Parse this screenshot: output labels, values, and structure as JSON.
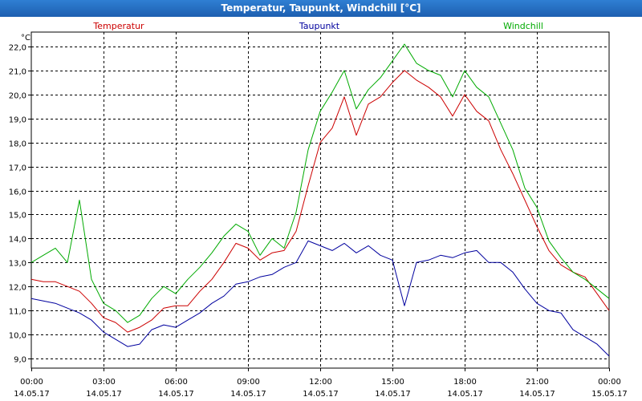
{
  "window": {
    "title": "Temperatur, Taupunkt, Windchill [°C]"
  },
  "chart_data": {
    "type": "line",
    "title": "Temperatur, Taupunkt, Windchill [°C]",
    "ylabel": "°C",
    "xlabel": "",
    "ylim": [
      8.6,
      22.6
    ],
    "yticks": [
      "9,0",
      "10,0",
      "11,0",
      "12,0",
      "13,0",
      "14,0",
      "15,0",
      "16,0",
      "17,0",
      "18,0",
      "19,0",
      "20,0",
      "21,0",
      "22,0"
    ],
    "ytick_values": [
      9,
      10,
      11,
      12,
      13,
      14,
      15,
      16,
      17,
      18,
      19,
      20,
      21,
      22
    ],
    "xlim_hours": [
      0,
      24
    ],
    "xticks": [
      {
        "time": "00:00",
        "date": "14.05.17"
      },
      {
        "time": "03:00",
        "date": "14.05.17"
      },
      {
        "time": "06:00",
        "date": "14.05.17"
      },
      {
        "time": "09:00",
        "date": "14.05.17"
      },
      {
        "time": "12:00",
        "date": "14.05.17"
      },
      {
        "time": "15:00",
        "date": "14.05.17"
      },
      {
        "time": "18:00",
        "date": "14.05.17"
      },
      {
        "time": "21:00",
        "date": "14.05.17"
      },
      {
        "time": "00:00",
        "date": "15.05.17"
      }
    ],
    "grid": true,
    "legend": [
      "Temperatur",
      "Taupunkt",
      "Windchill"
    ],
    "series": [
      {
        "name": "Temperatur",
        "color": "#cc0000",
        "hours": [
          0,
          0.5,
          1,
          1.5,
          2,
          2.5,
          3,
          3.5,
          4,
          4.5,
          5,
          5.5,
          6,
          6.5,
          7,
          7.5,
          8,
          8.5,
          9,
          9.5,
          10,
          10.5,
          11,
          11.5,
          12,
          12.5,
          13,
          13.5,
          14,
          14.5,
          15,
          15.5,
          16,
          16.5,
          17,
          17.5,
          18,
          18.5,
          19,
          19.5,
          20,
          20.5,
          21,
          21.5,
          22,
          22.5,
          23,
          23.5,
          24
        ],
        "values": [
          12.3,
          12.2,
          12.2,
          12.0,
          11.8,
          11.3,
          10.7,
          10.5,
          10.1,
          10.3,
          10.6,
          11.1,
          11.2,
          11.2,
          11.8,
          12.3,
          13.0,
          13.8,
          13.6,
          13.1,
          13.4,
          13.5,
          14.3,
          16.2,
          18.0,
          18.6,
          19.9,
          18.3,
          19.6,
          19.9,
          20.5,
          21.0,
          20.6,
          20.3,
          19.9,
          19.1,
          20.0,
          19.3,
          18.9,
          17.7,
          16.7,
          15.6,
          14.5,
          13.5,
          12.9,
          12.6,
          12.4,
          11.7,
          11.0
        ]
      },
      {
        "name": "Taupunkt",
        "color": "#00009e",
        "hours": [
          0,
          0.5,
          1,
          1.5,
          2,
          2.5,
          3,
          3.5,
          4,
          4.5,
          5,
          5.5,
          6,
          6.5,
          7,
          7.5,
          8,
          8.5,
          9,
          9.5,
          10,
          10.5,
          11,
          11.5,
          12,
          12.5,
          13,
          13.5,
          14,
          14.5,
          15,
          15.5,
          16,
          16.5,
          17,
          17.5,
          18,
          18.5,
          19,
          19.5,
          20,
          20.5,
          21,
          21.5,
          22,
          22.5,
          23,
          23.5,
          24
        ],
        "values": [
          11.5,
          11.4,
          11.3,
          11.1,
          10.9,
          10.6,
          10.1,
          9.8,
          9.5,
          9.6,
          10.2,
          10.4,
          10.3,
          10.6,
          10.9,
          11.3,
          11.6,
          12.1,
          12.2,
          12.4,
          12.5,
          12.8,
          13.0,
          13.9,
          13.7,
          13.5,
          13.8,
          13.4,
          13.7,
          13.3,
          13.1,
          11.2,
          13.0,
          13.1,
          13.3,
          13.2,
          13.4,
          13.5,
          13.0,
          13.0,
          12.6,
          11.9,
          11.3,
          11.0,
          10.9,
          10.2,
          9.9,
          9.6,
          9.1
        ]
      },
      {
        "name": "Windchill",
        "color": "#00aa00",
        "hours": [
          0,
          0.5,
          1,
          1.5,
          2,
          2.5,
          3,
          3.5,
          4,
          4.5,
          5,
          5.5,
          6,
          6.5,
          7,
          7.5,
          8,
          8.5,
          9,
          9.5,
          10,
          10.5,
          11,
          11.5,
          12,
          12.5,
          13,
          13.5,
          14,
          14.5,
          15,
          15.5,
          16,
          16.5,
          17,
          17.5,
          18,
          18.5,
          19,
          19.5,
          20,
          20.5,
          21,
          21.5,
          22,
          22.5,
          23,
          23.5,
          24
        ],
        "values": [
          13.0,
          13.3,
          13.6,
          13.0,
          15.6,
          12.3,
          11.3,
          11.0,
          10.5,
          10.8,
          11.5,
          12.0,
          11.7,
          12.3,
          12.8,
          13.4,
          14.1,
          14.6,
          14.3,
          13.3,
          14.0,
          13.6,
          15.1,
          17.7,
          19.3,
          20.1,
          21.0,
          19.4,
          20.2,
          20.7,
          21.4,
          22.1,
          21.3,
          21.0,
          20.8,
          19.9,
          21.0,
          20.3,
          19.9,
          18.8,
          17.7,
          16.1,
          15.3,
          13.9,
          13.2,
          12.6,
          12.3,
          11.9,
          11.5
        ]
      }
    ]
  }
}
